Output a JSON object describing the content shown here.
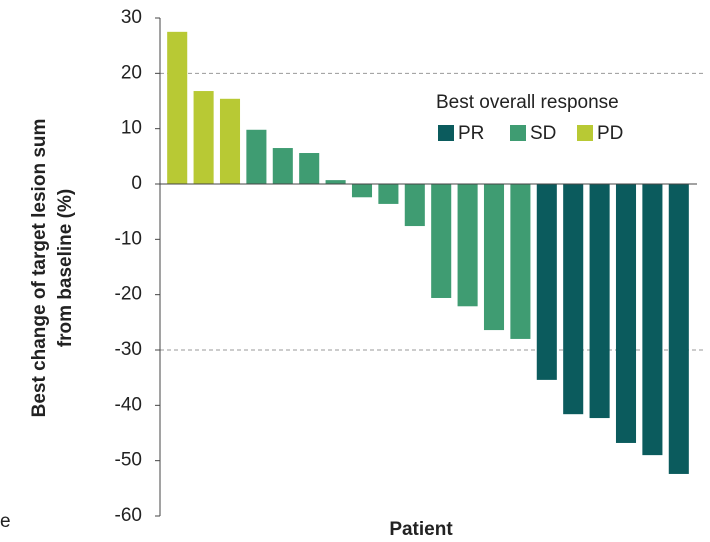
{
  "chart_data": {
    "type": "bar",
    "y_label": [
      "Best change of target lesion sum",
      "from baseline (%)"
    ],
    "x_label": "Patient",
    "legend_title": "Best overall response",
    "annotation": "e",
    "categories": [
      null,
      null,
      null,
      null,
      null,
      null,
      null,
      null,
      null,
      null,
      null,
      null,
      null,
      null,
      null,
      null,
      null,
      null,
      null,
      null
    ],
    "series": [
      {
        "name": "PR",
        "color": "#0b5b5d",
        "values": [
          null,
          null,
          null,
          null,
          null,
          null,
          null,
          null,
          null,
          null,
          null,
          null,
          null,
          null,
          -35.4,
          -41.6,
          -42.3,
          -46.8,
          -49.0,
          -52.4
        ]
      },
      {
        "name": "SD",
        "color": "#3f9c72",
        "values": [
          null,
          null,
          null,
          9.8,
          6.5,
          5.6,
          0.7,
          -2.4,
          -3.6,
          -7.6,
          -20.6,
          -22.1,
          -26.4,
          -28.0,
          null,
          null,
          null,
          null,
          null,
          null
        ]
      },
      {
        "name": "PD",
        "color": "#b8c934",
        "values": [
          27.5,
          16.8,
          15.4,
          null,
          null,
          null,
          null,
          null,
          null,
          null,
          null,
          null,
          null,
          null,
          null,
          null,
          null,
          null,
          null,
          null
        ]
      }
    ],
    "ylim": [
      -60,
      30
    ],
    "yticks": [
      30,
      20,
      10,
      0,
      -10,
      -20,
      -30,
      -40,
      -50,
      -60
    ],
    "dashed_grid_lines": [
      20,
      -30
    ]
  }
}
